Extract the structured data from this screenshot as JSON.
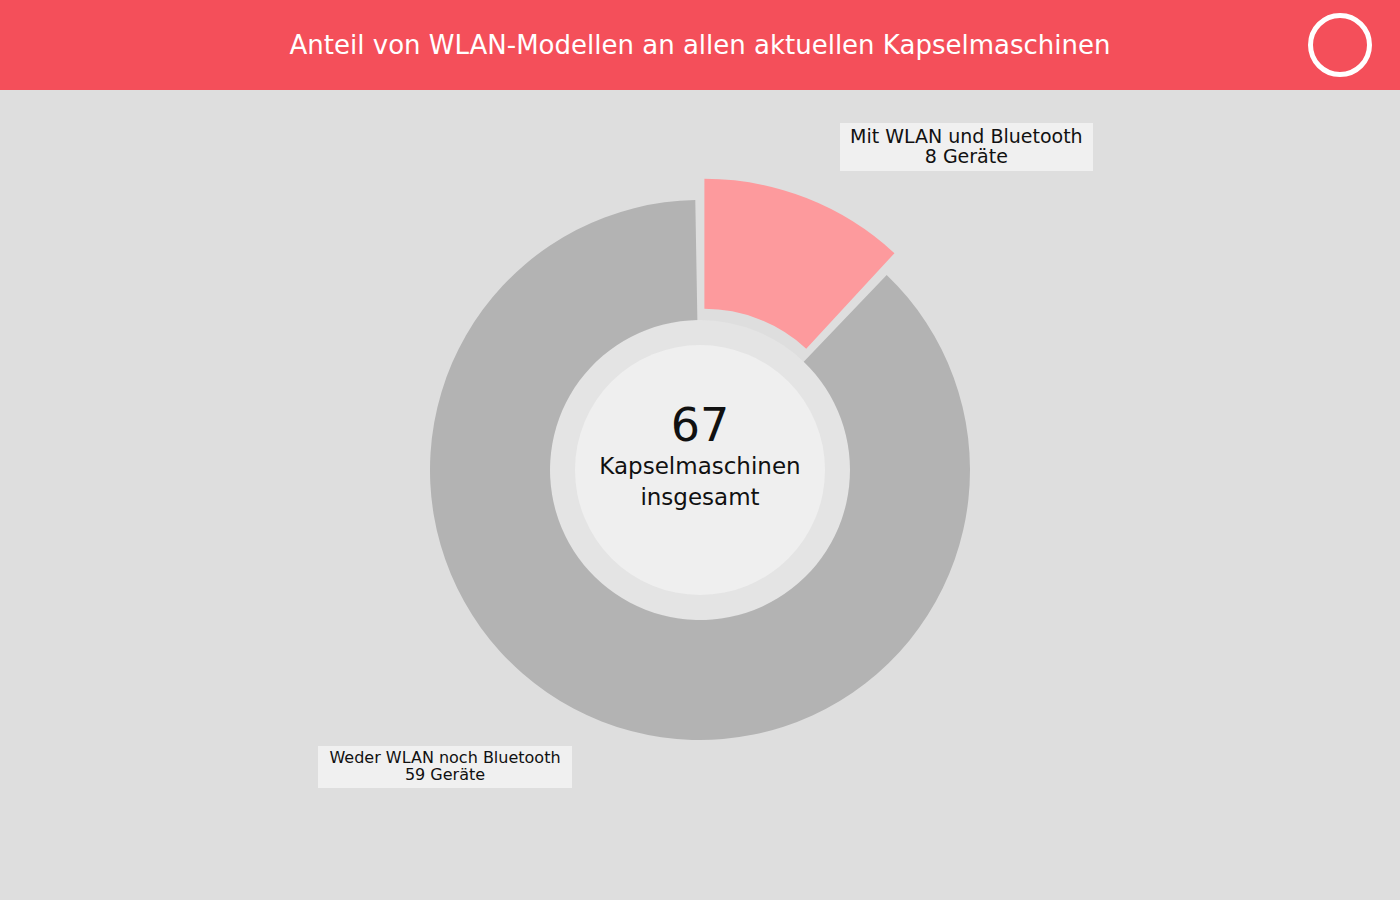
{
  "chart_data": {
    "type": "pie",
    "title": "Anteil von WLAN-Modellen an allen aktuellen Kapselmaschinen",
    "categories": [
      "Mit WLAN und Bluetooth",
      "Weder WLAN noch Bluetooth"
    ],
    "values": [
      8,
      59
    ],
    "value_labels": [
      "8 Geräte",
      "59 Geräte"
    ],
    "colors": [
      "#fd9a9d",
      "#b3b3b3"
    ],
    "data_labels": true,
    "total": 67,
    "total_label": "Kapselmaschinen insgesamt"
  }
}
